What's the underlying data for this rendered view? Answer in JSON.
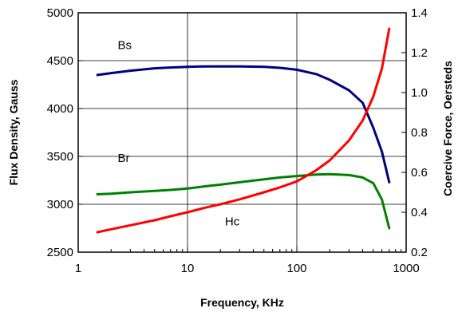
{
  "chart_data": {
    "type": "line",
    "title": "",
    "xlabel": "Frequency, KHz",
    "ylabel": "Flux Density, Gauss",
    "y2label": "Coercive Force, Oersteds",
    "x_scale": "log",
    "xlim": [
      1,
      1000
    ],
    "ylim": [
      2500,
      5000
    ],
    "y2lim": [
      0.2,
      1.4
    ],
    "x_ticks": [
      "1",
      "10",
      "100",
      "1000"
    ],
    "y_ticks": [
      "2500",
      "3000",
      "3500",
      "4000",
      "4500",
      "5000"
    ],
    "y2_ticks": [
      "0.2",
      "0.4",
      "0.6",
      "0.8",
      "1.0",
      "1.2",
      "1.4"
    ],
    "grid": true,
    "legend": "none",
    "annotations": [
      {
        "text": "Bs",
        "x": 2.3,
        "y": 4620
      },
      {
        "text": "Br",
        "x": 2.3,
        "y": 3440
      },
      {
        "text": "Hc",
        "x": 22,
        "y": 2780
      }
    ],
    "series": [
      {
        "axis": "left",
        "color": "#000080",
        "x": [
          1.5,
          2,
          3,
          5,
          7,
          10,
          15,
          20,
          30,
          50,
          70,
          100,
          150,
          200,
          300,
          400,
          500,
          600,
          700
        ],
        "y": [
          4350,
          4370,
          4395,
          4420,
          4428,
          4435,
          4440,
          4440,
          4440,
          4435,
          4425,
          4405,
          4360,
          4300,
          4190,
          4060,
          3800,
          3550,
          3230
        ]
      },
      {
        "axis": "left",
        "color": "#008000",
        "x": [
          1.5,
          2,
          3,
          5,
          7,
          10,
          15,
          20,
          30,
          50,
          70,
          100,
          150,
          200,
          300,
          400,
          500,
          600,
          700
        ],
        "y": [
          3105,
          3110,
          3125,
          3140,
          3150,
          3165,
          3190,
          3205,
          3230,
          3260,
          3280,
          3295,
          3310,
          3315,
          3305,
          3280,
          3220,
          3050,
          2750
        ]
      },
      {
        "axis": "right",
        "color": "#ff0000",
        "x": [
          1.5,
          2,
          3,
          5,
          7,
          10,
          15,
          20,
          30,
          50,
          70,
          100,
          150,
          200,
          300,
          400,
          500,
          600,
          700
        ],
        "y": [
          0.3,
          0.315,
          0.335,
          0.36,
          0.38,
          0.4,
          0.425,
          0.44,
          0.465,
          0.5,
          0.525,
          0.555,
          0.61,
          0.66,
          0.76,
          0.86,
          0.98,
          1.12,
          1.32
        ]
      }
    ]
  }
}
